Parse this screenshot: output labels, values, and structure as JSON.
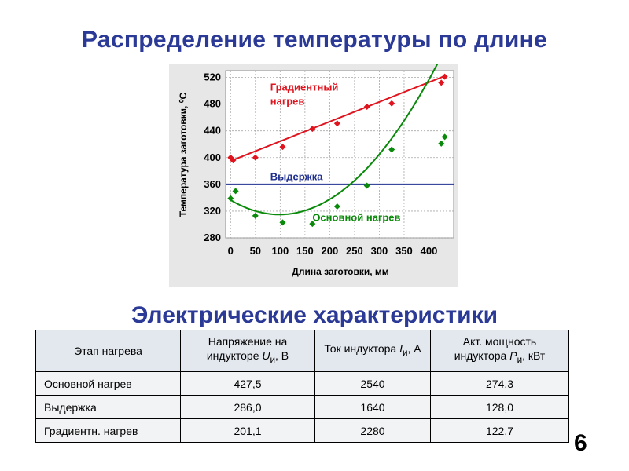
{
  "slide": {
    "title": "Распределение температуры по длине",
    "section_title": "Электрические характеристики",
    "page_number": "6"
  },
  "chart_data": {
    "type": "scatter",
    "xlabel": "Длина заготовки, мм",
    "ylabel": "Температура заготовки, ",
    "ylabel_unit": "⁰С",
    "xlim": [
      -10,
      450
    ],
    "ylim": [
      280,
      530
    ],
    "x_ticks": [
      0,
      50,
      100,
      150,
      200,
      250,
      300,
      350,
      400
    ],
    "y_ticks": [
      280,
      320,
      360,
      400,
      440,
      480,
      520
    ],
    "grid": true,
    "series": [
      {
        "name": "Градиентный нагрев",
        "label_lines": [
          "Градиентный",
          "нагрев"
        ],
        "color": "#e0141e",
        "marker": "diamond",
        "points": [
          [
            0,
            400
          ],
          [
            5,
            396
          ],
          [
            50,
            400
          ],
          [
            105,
            416
          ],
          [
            165,
            443
          ],
          [
            215,
            451
          ],
          [
            275,
            476
          ],
          [
            325,
            481
          ],
          [
            425,
            512
          ],
          [
            432,
            521
          ]
        ],
        "fit": {
          "kind": "linear",
          "from": [
            0,
            395
          ],
          "to": [
            432,
            522
          ]
        }
      },
      {
        "name": "Выдержка",
        "color": "#1f2f8f",
        "marker": "line",
        "constant": 360
      },
      {
        "name": "Основной нагрев",
        "color": "#0a8a0a",
        "marker": "diamond",
        "points": [
          [
            0,
            339
          ],
          [
            10,
            350
          ],
          [
            50,
            313
          ],
          [
            105,
            303
          ],
          [
            165,
            301
          ],
          [
            215,
            327
          ],
          [
            275,
            358
          ],
          [
            325,
            412
          ],
          [
            425,
            421
          ],
          [
            432,
            431
          ]
        ],
        "fit": {
          "kind": "quadratic",
          "a": 0.00222,
          "b": -0.438,
          "c": 336.5,
          "from": 0,
          "to": 432
        }
      }
    ]
  },
  "table": {
    "headers": [
      {
        "text": "Этап нагрева"
      },
      {
        "pre": "Напряжение на индукторе ",
        "sym": "U",
        "sub": "и",
        "post": ", В"
      },
      {
        "pre": "Ток индуктора ",
        "sym": "I",
        "sub": "и",
        "post": ", А"
      },
      {
        "pre": "Акт. мощность индуктора ",
        "sym": "P",
        "sub": "и",
        "post": ", кВт"
      }
    ],
    "rows": [
      [
        "Основной нагрев",
        "427,5",
        "2540",
        "274,3"
      ],
      [
        "Выдержка",
        "286,0",
        "1640",
        "128,0"
      ],
      [
        "Градиентн. нагрев",
        "201,1",
        "2280",
        "122,7"
      ]
    ]
  }
}
